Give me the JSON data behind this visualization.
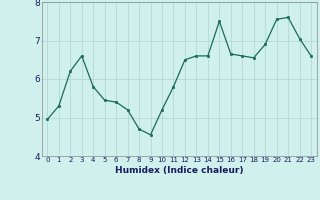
{
  "x": [
    0,
    1,
    2,
    3,
    4,
    5,
    6,
    7,
    8,
    9,
    10,
    11,
    12,
    13,
    14,
    15,
    16,
    17,
    18,
    19,
    20,
    21,
    22,
    23
  ],
  "y": [
    4.95,
    5.3,
    6.2,
    6.6,
    5.8,
    5.45,
    5.4,
    5.2,
    4.7,
    4.55,
    5.2,
    5.8,
    6.5,
    6.6,
    6.6,
    7.5,
    6.65,
    6.6,
    6.55,
    6.9,
    7.55,
    7.6,
    7.05,
    6.6
  ],
  "xlabel": "Humidex (Indice chaleur)",
  "bg_color": "#cff0ec",
  "line_color": "#1a6b5a",
  "marker_color": "#1a6b5a",
  "grid_color": "#b8dbd6",
  "axes_bg": "#cff0ec",
  "ylim": [
    4.0,
    8.0
  ],
  "xlim": [
    -0.5,
    23.5
  ],
  "yticks": [
    4,
    5,
    6,
    7,
    8
  ],
  "xticks": [
    0,
    1,
    2,
    3,
    4,
    5,
    6,
    7,
    8,
    9,
    10,
    11,
    12,
    13,
    14,
    15,
    16,
    17,
    18,
    19,
    20,
    21,
    22,
    23
  ]
}
